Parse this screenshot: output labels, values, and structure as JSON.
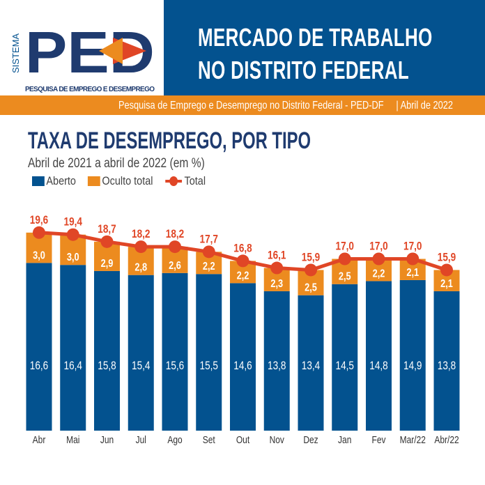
{
  "header": {
    "logo_text": "PED",
    "logo_side": "SISTEMA",
    "logo_caption": "PESQUISA DE EMPREGO E DESEMPREGO",
    "title_line1": "MERCADO DE TRABALHO",
    "title_line2": "NO DISTRITO FEDERAL",
    "band_text": "Pesquisa de Emprego e Desemprego no Distrito Federal - PED-DF",
    "band_date": "| Abril de 2022"
  },
  "colors": {
    "aberto": "#03528f",
    "oculto": "#ec8b1f",
    "total": "#e04626",
    "title": "#1f3b6f"
  },
  "chart_data": {
    "type": "bar",
    "stacked": true,
    "title": "TAXA DE DESEMPREGO, POR TIPO",
    "subtitle": "Abril de 2021 a abril de 2022 (em %)",
    "legend_position": "top-left",
    "grid": false,
    "categories": [
      "Abr",
      "Mai",
      "Jun",
      "Jul",
      "Ago",
      "Set",
      "Out",
      "Nov",
      "Dez",
      "Jan",
      "Fev",
      "Mar/22",
      "Abr/22"
    ],
    "series": [
      {
        "name": "Aberto",
        "type": "bar",
        "values": [
          16.6,
          16.4,
          15.8,
          15.4,
          15.6,
          15.5,
          14.6,
          13.8,
          13.4,
          14.5,
          14.8,
          14.9,
          13.8
        ]
      },
      {
        "name": "Oculto total",
        "type": "bar",
        "values": [
          3.0,
          3.0,
          2.9,
          2.8,
          2.6,
          2.2,
          2.2,
          2.3,
          2.5,
          2.5,
          2.2,
          2.1,
          2.1
        ]
      },
      {
        "name": "Total",
        "type": "line",
        "values": [
          19.6,
          19.4,
          18.7,
          18.2,
          18.2,
          17.7,
          16.8,
          16.1,
          15.9,
          17.0,
          17.0,
          17.0,
          15.9
        ]
      }
    ]
  }
}
